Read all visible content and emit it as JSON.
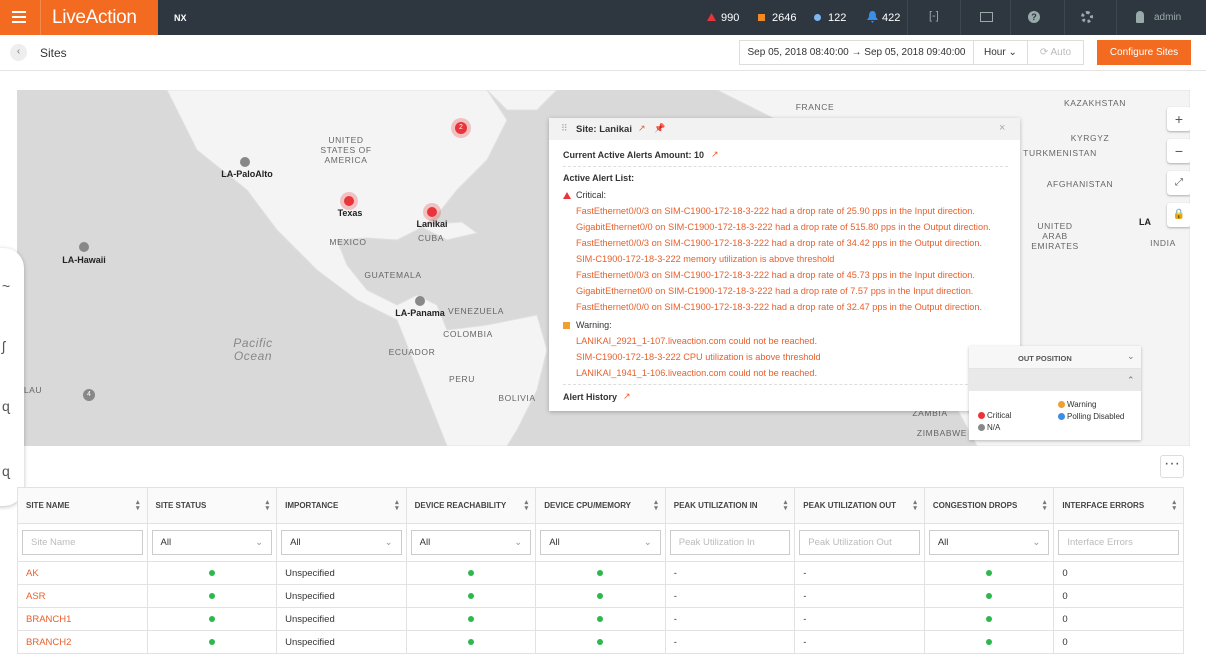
{
  "header": {
    "logo": "LiveAction",
    "product": "NX",
    "critical_count": 990,
    "major_count": 2646,
    "minor_count": 122,
    "notifications": 422,
    "user": "admin"
  },
  "toolbar": {
    "title": "Sites",
    "start": "Sep 05, 2018 08:40:00",
    "end": "Sep 05, 2018 09:40:00",
    "interval": "Hour",
    "refresh": "Auto",
    "configure": "Configure Sites"
  },
  "map": {
    "labels": [
      "UNITED STATES OF AMERICA",
      "MEXICO",
      "CUBA",
      "GUATEMALA",
      "VENEZUELA",
      "COLOMBIA",
      "ECUADOR",
      "PERU",
      "BOLIVIA",
      "Pacific Ocean",
      "FRANCE",
      "KAZAKHSTAN",
      "KYRGYZ",
      "TURKMENISTAN",
      "AFGHANISTAN",
      "UNITED ARAB EMIRATES",
      "INDIA",
      "ZAMBIA",
      "ZIMBABWE",
      "LAU"
    ],
    "sites": [
      {
        "label": "LA-PaloAlto",
        "status": "N/A"
      },
      {
        "label": "Texas",
        "status": "Critical"
      },
      {
        "label": "Lanikai",
        "status": "Critical"
      },
      {
        "label": "LA-Hawaii",
        "status": "N/A"
      },
      {
        "label": "LA-Panama",
        "status": "N/A"
      }
    ],
    "clusters": [
      {
        "count": 2,
        "status": "Critical"
      },
      {
        "count": 4,
        "status": "N/A"
      }
    ],
    "partial_site_label": "LA"
  },
  "popup": {
    "title": "Site: Lanikai",
    "amount": "Current Active Alerts Amount: 10",
    "list_title": "Active Alert List:",
    "critical_title": "Critical:",
    "critical": [
      "FastEthernet0/0/3 on SIM-C1900-172-18-3-222 had a drop rate of 25.90 pps in the Input direction.",
      "GigabitEthernet0/0 on SIM-C1900-172-18-3-222 had a drop rate of 515.80 pps in the Output direction.",
      "FastEthernet0/0/3 on SIM-C1900-172-18-3-222 had a drop rate of 34.42 pps in the Output direction.",
      "SIM-C1900-172-18-3-222 memory utilization is above threshold",
      "FastEthernet0/0/3 on SIM-C1900-172-18-3-222 had a drop rate of 45.73 pps in the Input direction.",
      "GigabitEthernet0/0 on SIM-C1900-172-18-3-222 had a drop rate of 7.57 pps in the Input direction.",
      "FastEthernet0/0/0 on SIM-C1900-172-18-3-222 had a drop rate of 32.47 pps in the Output direction."
    ],
    "warning_title": "Warning:",
    "warning": [
      "LANIKAI_2921_1-107.liveaction.com could not be reached.",
      "SIM-C1900-172-18-3-222 CPU utilization is above threshold",
      "LANIKAI_1941_1-106.liveaction.com could not be reached."
    ],
    "history": "Alert History"
  },
  "legend": {
    "header": "OUT POSITION",
    "items": [
      {
        "label": "Critical",
        "color": "#e8343a"
      },
      {
        "label": "N/A",
        "color": "#888888"
      },
      {
        "label": "Warning",
        "color": "#f0a030"
      },
      {
        "label": "Polling Disabled",
        "color": "#3a8ee6"
      }
    ]
  },
  "table": {
    "columns": [
      "SITE NAME",
      "SITE STATUS",
      "IMPORTANCE",
      "DEVICE REACHABILITY",
      "DEVICE CPU/MEMORY",
      "PEAK UTILIZATION IN",
      "PEAK UTILIZATION OUT",
      "CONGESTION DROPS",
      "INTERFACE ERRORS"
    ],
    "filters": [
      "Site Name",
      "All",
      "All",
      "All",
      "All",
      "Peak Utilization In",
      "Peak Utilization Out",
      "All",
      "Interface Errors"
    ],
    "rows": [
      [
        "AK",
        "Unspecified",
        "-",
        "-",
        "0"
      ],
      [
        "ASR",
        "Unspecified",
        "-",
        "-",
        "0"
      ],
      [
        "BRANCH1",
        "Unspecified",
        "-",
        "-",
        "0"
      ],
      [
        "BRANCH2",
        "Unspecified",
        "-",
        "-",
        "0"
      ]
    ]
  }
}
